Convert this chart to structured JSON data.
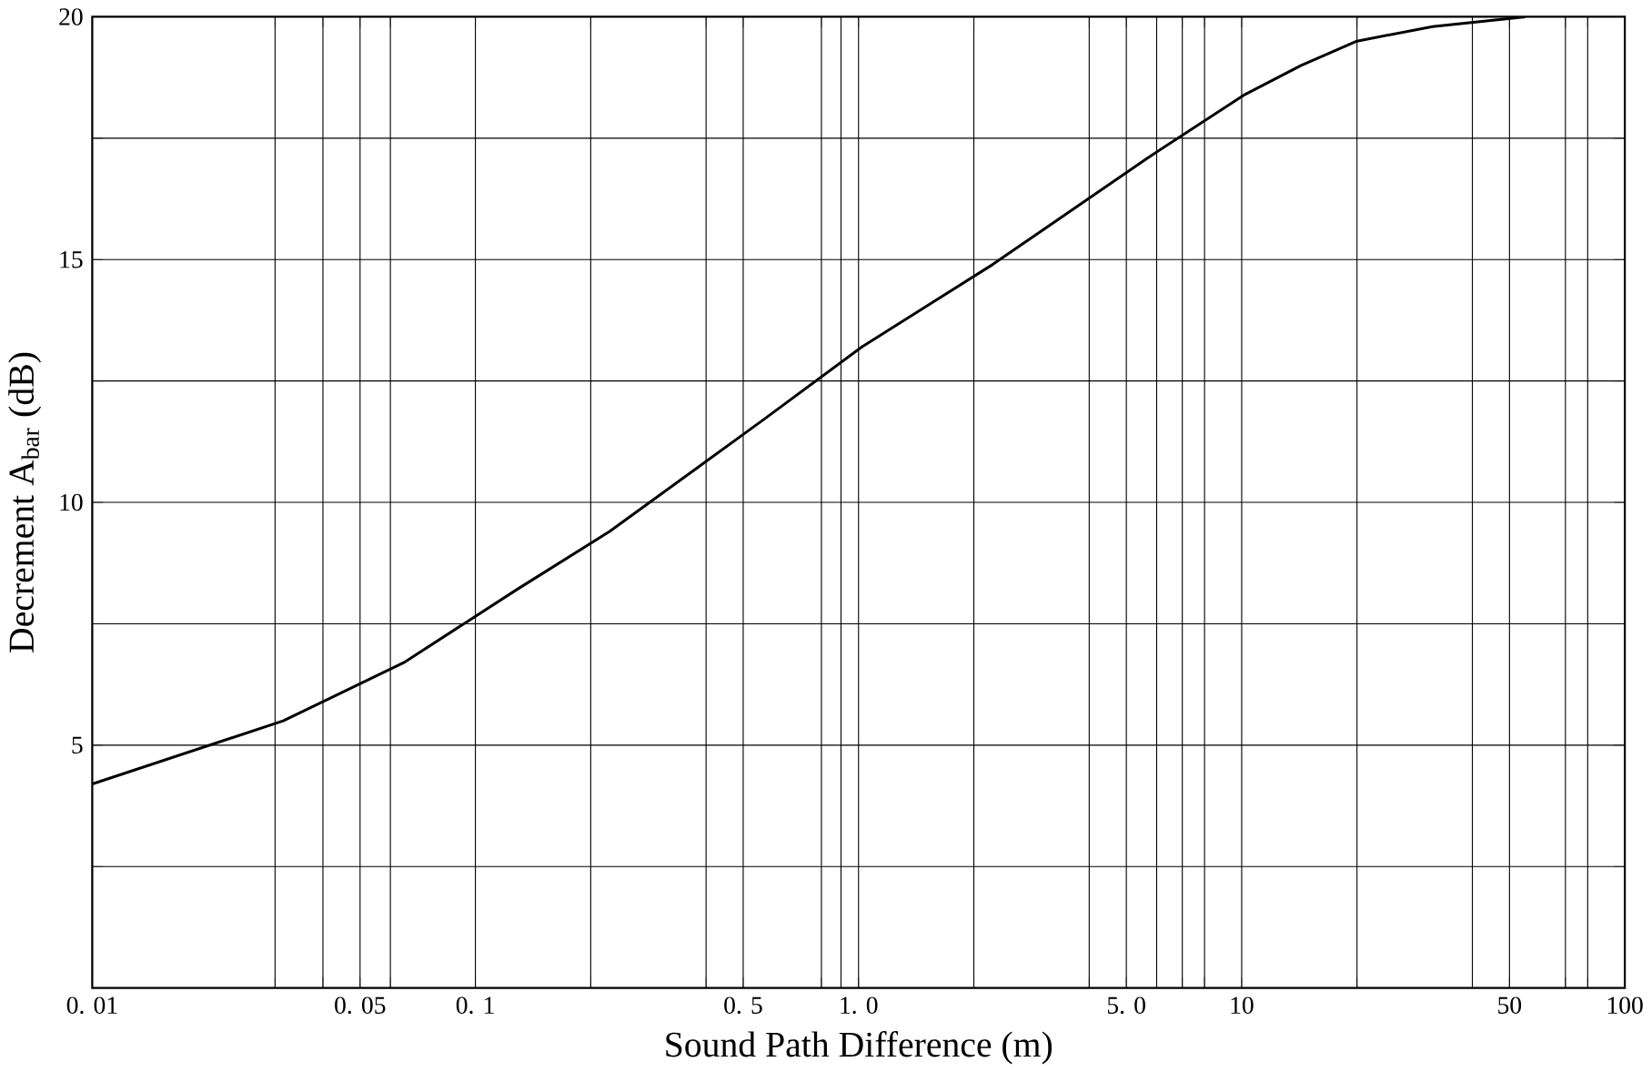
{
  "chart_data": {
    "type": "line",
    "xlabel": "Sound Path Difference (m)",
    "ylabel": "Decrement  A$_{bar}$ (dB)",
    "log": "x",
    "grid": true,
    "marker": "none",
    "line_style": "solid",
    "xlim": [
      0.01,
      100
    ],
    "ylim": [
      0,
      20
    ],
    "xticks": [
      {
        "value": 0.01,
        "label": "0. 01"
      },
      {
        "value": 0.03,
        "label": null
      },
      {
        "value": 0.04,
        "label": null
      },
      {
        "value": 0.05,
        "label": "0. 05"
      },
      {
        "value": 0.06,
        "label": null
      },
      {
        "value": 0.1,
        "label": "0. 1"
      },
      {
        "value": 0.2,
        "label": null
      },
      {
        "value": 0.4,
        "label": null
      },
      {
        "value": 0.5,
        "label": "0. 5"
      },
      {
        "value": 0.8,
        "label": null
      },
      {
        "value": 0.9,
        "label": null
      },
      {
        "value": 1,
        "label": "1. 0"
      },
      {
        "value": 2,
        "label": null
      },
      {
        "value": 4,
        "label": null
      },
      {
        "value": 5,
        "label": "5. 0"
      },
      {
        "value": 6,
        "label": null
      },
      {
        "value": 7,
        "label": null
      },
      {
        "value": 8,
        "label": null
      },
      {
        "value": 10,
        "label": "10"
      },
      {
        "value": 20,
        "label": null
      },
      {
        "value": 40,
        "label": null
      },
      {
        "value": 50,
        "label": "50"
      },
      {
        "value": 70,
        "label": null
      },
      {
        "value": 80,
        "label": null
      },
      {
        "value": 100,
        "label": "100"
      }
    ],
    "yticks": [
      {
        "value": 2.5,
        "label": null
      },
      5,
      {
        "value": 7.5,
        "label": null
      },
      10,
      {
        "value": 12.5,
        "label": null
      },
      15,
      {
        "value": 17.5,
        "label": null
      },
      20
    ],
    "x": [
      0.01,
      0.0315,
      0.065,
      0.128,
      0.224,
      0.564,
      1.02,
      2.24,
      5.7,
      10.2,
      14.3,
      20,
      31.5,
      55
    ],
    "series": [
      {
        "color": "#000000",
        "values": [
          4.2,
          5.5,
          6.7,
          8.2,
          9.4,
          11.7,
          13.2,
          14.9,
          17.1,
          18.4,
          19.0,
          19.5,
          19.8,
          20
        ]
      }
    ]
  }
}
